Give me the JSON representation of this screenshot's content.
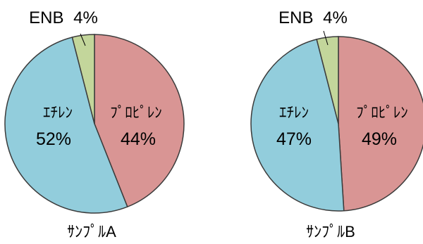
{
  "chart_data": [
    {
      "type": "pie",
      "title": "",
      "caption": "ｻﾝﾌﾟﾙA",
      "categories": [
        "ﾌﾟﾛﾋﾟﾚﾝ",
        "ｴﾁﾚﾝ",
        "ENB"
      ],
      "values": [
        44,
        52,
        4
      ],
      "value_labels": [
        "44%",
        "52%",
        "4%"
      ],
      "colors": [
        "#d99594",
        "#92cddc",
        "#c3d69b"
      ],
      "start": "12 o'clock",
      "direction": "clockwise",
      "legend": "none"
    },
    {
      "type": "pie",
      "title": "",
      "caption": "ｻﾝﾌﾟﾙB",
      "categories": [
        "ﾌﾟﾛﾋﾟﾚﾝ",
        "ｴﾁﾚﾝ",
        "ENB"
      ],
      "values": [
        49,
        47,
        4
      ],
      "value_labels": [
        "49%",
        "47%",
        "4%"
      ],
      "colors": [
        "#d99594",
        "#92cddc",
        "#c3d69b"
      ],
      "start": "12 o'clock",
      "direction": "clockwise",
      "legend": "none"
    }
  ]
}
